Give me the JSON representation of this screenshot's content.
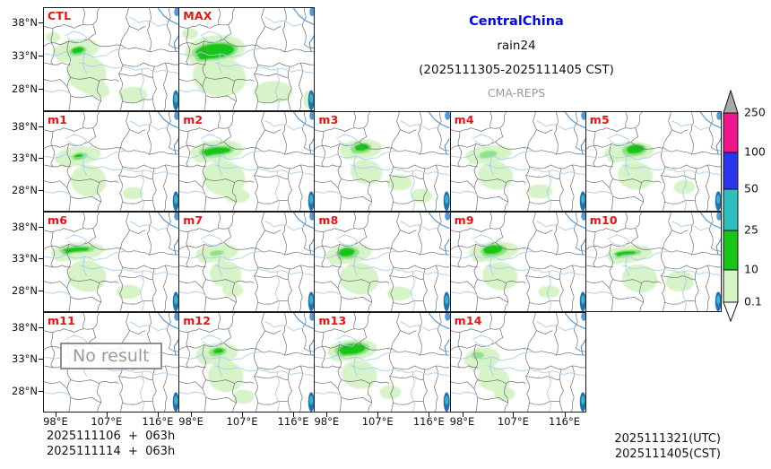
{
  "header": {
    "region": "CentralChina",
    "variable": "rain24",
    "period": "(2025111305-2025111405 CST)",
    "model": "CMA-REPS"
  },
  "colorbar": {
    "tick_labels": [
      "250",
      "100",
      "50",
      "25",
      "10",
      "0.1"
    ],
    "segment_colors": [
      "#f0148c",
      "#2a35ee",
      "#30bfbf",
      "#17c517",
      "#d7f3c8"
    ],
    "over_arrow_color": "#a9a9a9",
    "under_arrow_color": "#ffffff"
  },
  "axes": {
    "lat_tick_labels": [
      "38°N",
      "33°N",
      "28°N"
    ],
    "lon_tick_labels": [
      "98°E",
      "107°E",
      "116°E"
    ]
  },
  "footer": {
    "left_lines": [
      "2025111106  +  063h",
      "2025111114  +  063h"
    ],
    "right_lines": [
      "2025111321(UTC)",
      "2025111405(CST)"
    ]
  },
  "no_result_text": "No result",
  "map_colors": {
    "province_border": "#6f6f6f",
    "river": "#a9cdec",
    "river_dark": "#4f9ad8",
    "lake": "#1f72b4",
    "lake_teal": "#35b6c9",
    "precip_levels": [
      "#d7f3c8",
      "#8fe283",
      "#16c516"
    ],
    "panel_label": "#ec1212"
  },
  "rows": [
    {
      "panels": [
        {
          "label": "CTL",
          "no_result": false,
          "precip": [
            [
              36,
              46,
              26,
              12,
              -8,
              0
            ],
            [
              48,
              72,
              22,
              20,
              15,
              0
            ],
            [
              58,
              88,
              16,
              10,
              20,
              0
            ],
            [
              10,
              32,
              8,
              6,
              0,
              0
            ],
            [
              100,
              95,
              16,
              9,
              0,
              0
            ],
            [
              38,
              47,
              10,
              5,
              -10,
              1
            ],
            [
              38,
              46,
              7,
              3.5,
              -10,
              2
            ]
          ]
        },
        {
          "label": "MAX",
          "no_result": false,
          "precip": [
            [
              40,
              46,
              34,
              16,
              -6,
              0
            ],
            [
              45,
              75,
              30,
              22,
              8,
              0
            ],
            [
              105,
              92,
              22,
              12,
              0,
              0
            ],
            [
              12,
              28,
              9,
              6,
              0,
              0
            ],
            [
              145,
              100,
              6,
              10,
              0,
              0
            ],
            [
              40,
              47,
              26,
              10,
              -6,
              1
            ],
            [
              40,
              47,
              22,
              8,
              -6,
              2
            ]
          ]
        }
      ]
    },
    {
      "panels": [
        {
          "label": "m1",
          "no_result": false,
          "precip": [
            [
              38,
              50,
              26,
              11,
              -8,
              0
            ],
            [
              50,
              78,
              20,
              18,
              10,
              0
            ],
            [
              100,
              92,
              12,
              7,
              0,
              0
            ],
            [
              40,
              50,
              9,
              4,
              -8,
              1
            ],
            [
              39,
              50,
              5,
              2.5,
              -8,
              2
            ]
          ]
        },
        {
          "label": "m2",
          "no_result": false,
          "precip": [
            [
              42,
              44,
              30,
              12,
              -5,
              0
            ],
            [
              50,
              75,
              24,
              20,
              10,
              0
            ],
            [
              65,
              95,
              14,
              8,
              0,
              0
            ],
            [
              42,
              44,
              20,
              6,
              -5,
              1
            ],
            [
              42,
              44,
              16,
              4,
              -5,
              2
            ]
          ]
        },
        {
          "label": "m3",
          "no_result": false,
          "precip": [
            [
              52,
              42,
              24,
              11,
              -5,
              0
            ],
            [
              58,
              68,
              18,
              14,
              10,
              0
            ],
            [
              95,
              80,
              14,
              9,
              0,
              0
            ],
            [
              120,
              95,
              12,
              8,
              0,
              0
            ],
            [
              52,
              41,
              12,
              6,
              -5,
              1
            ],
            [
              53,
              40,
              8,
              4,
              -5,
              2
            ]
          ]
        },
        {
          "label": "m4",
          "no_result": false,
          "precip": [
            [
              42,
              48,
              26,
              10,
              -6,
              0
            ],
            [
              50,
              72,
              20,
              16,
              10,
              0
            ],
            [
              100,
              90,
              14,
              8,
              0,
              0
            ],
            [
              42,
              48,
              10,
              4,
              -6,
              1
            ]
          ]
        },
        {
          "label": "m5",
          "no_result": false,
          "precip": [
            [
              48,
              45,
              28,
              11,
              -5,
              0
            ],
            [
              55,
              72,
              20,
              16,
              10,
              0
            ],
            [
              110,
              85,
              12,
              8,
              0,
              0
            ],
            [
              54,
              43,
              14,
              7,
              -5,
              1
            ],
            [
              55,
              42,
              10,
              5,
              -5,
              2
            ]
          ]
        }
      ]
    },
    {
      "panels": [
        {
          "label": "m6",
          "no_result": false,
          "precip": [
            [
              38,
              44,
              30,
              10,
              -4,
              0
            ],
            [
              48,
              72,
              22,
              18,
              10,
              0
            ],
            [
              95,
              90,
              14,
              8,
              0,
              0
            ],
            [
              37,
              42,
              20,
              4,
              -4,
              1
            ],
            [
              36,
              42,
              15,
              2.5,
              -4,
              2
            ]
          ]
        },
        {
          "label": "m7",
          "no_result": false,
          "precip": [
            [
              42,
              46,
              24,
              10,
              -6,
              0
            ],
            [
              52,
              70,
              18,
              15,
              10,
              0
            ],
            [
              60,
              88,
              12,
              8,
              0,
              0
            ],
            [
              42,
              46,
              8,
              3,
              -6,
              1
            ]
          ]
        },
        {
          "label": "m8",
          "no_result": false,
          "precip": [
            [
              38,
              47,
              26,
              11,
              -6,
              0
            ],
            [
              50,
              75,
              22,
              18,
              10,
              0
            ],
            [
              95,
              92,
              14,
              8,
              0,
              0
            ],
            [
              37,
              46,
              13,
              7,
              -6,
              1
            ],
            [
              36,
              45,
              9,
              5,
              -6,
              2
            ]
          ]
        },
        {
          "label": "m9",
          "no_result": false,
          "precip": [
            [
              48,
              44,
              28,
              11,
              -5,
              0
            ],
            [
              55,
              72,
              20,
              16,
              10,
              0
            ],
            [
              110,
              90,
              12,
              7,
              0,
              0
            ],
            [
              48,
              43,
              15,
              7,
              -5,
              1
            ],
            [
              47,
              42,
              11,
              5,
              -5,
              2
            ]
          ]
        },
        {
          "label": "m10",
          "no_result": false,
          "precip": [
            [
              48,
              47,
              26,
              10,
              -5,
              0
            ],
            [
              60,
              75,
              20,
              16,
              10,
              0
            ],
            [
              105,
              78,
              16,
              12,
              0,
              0
            ],
            [
              46,
              46,
              16,
              3.5,
              -5,
              1
            ],
            [
              44,
              46,
              12,
              2,
              -5,
              2
            ]
          ]
        }
      ]
    },
    {
      "panels": [
        {
          "label": "m11",
          "no_result": true,
          "precip": []
        },
        {
          "label": "m12",
          "no_result": false,
          "precip": [
            [
              42,
              46,
              24,
              12,
              -6,
              0
            ],
            [
              52,
              72,
              20,
              18,
              10,
              0
            ],
            [
              72,
              95,
              12,
              8,
              0,
              0
            ],
            [
              43,
              44,
              10,
              5,
              -6,
              1
            ],
            [
              44,
              43,
              6,
              3,
              -6,
              2
            ]
          ]
        },
        {
          "label": "m13",
          "no_result": false,
          "precip": [
            [
              42,
              42,
              28,
              12,
              -5,
              0
            ],
            [
              50,
              70,
              20,
              16,
              10,
              0
            ],
            [
              85,
              90,
              12,
              8,
              0,
              0
            ],
            [
              42,
              41,
              20,
              8,
              -5,
              1
            ],
            [
              42,
              41,
              15,
              6,
              -5,
              2
            ]
          ]
        },
        {
          "label": "m14",
          "no_result": false,
          "precip": [
            [
              35,
              52,
              20,
              13,
              -8,
              0
            ],
            [
              48,
              75,
              18,
              14,
              10,
              0
            ],
            [
              60,
              92,
              12,
              8,
              0,
              0
            ],
            [
              30,
              48,
              7,
              4,
              0,
              1
            ]
          ]
        }
      ]
    }
  ]
}
